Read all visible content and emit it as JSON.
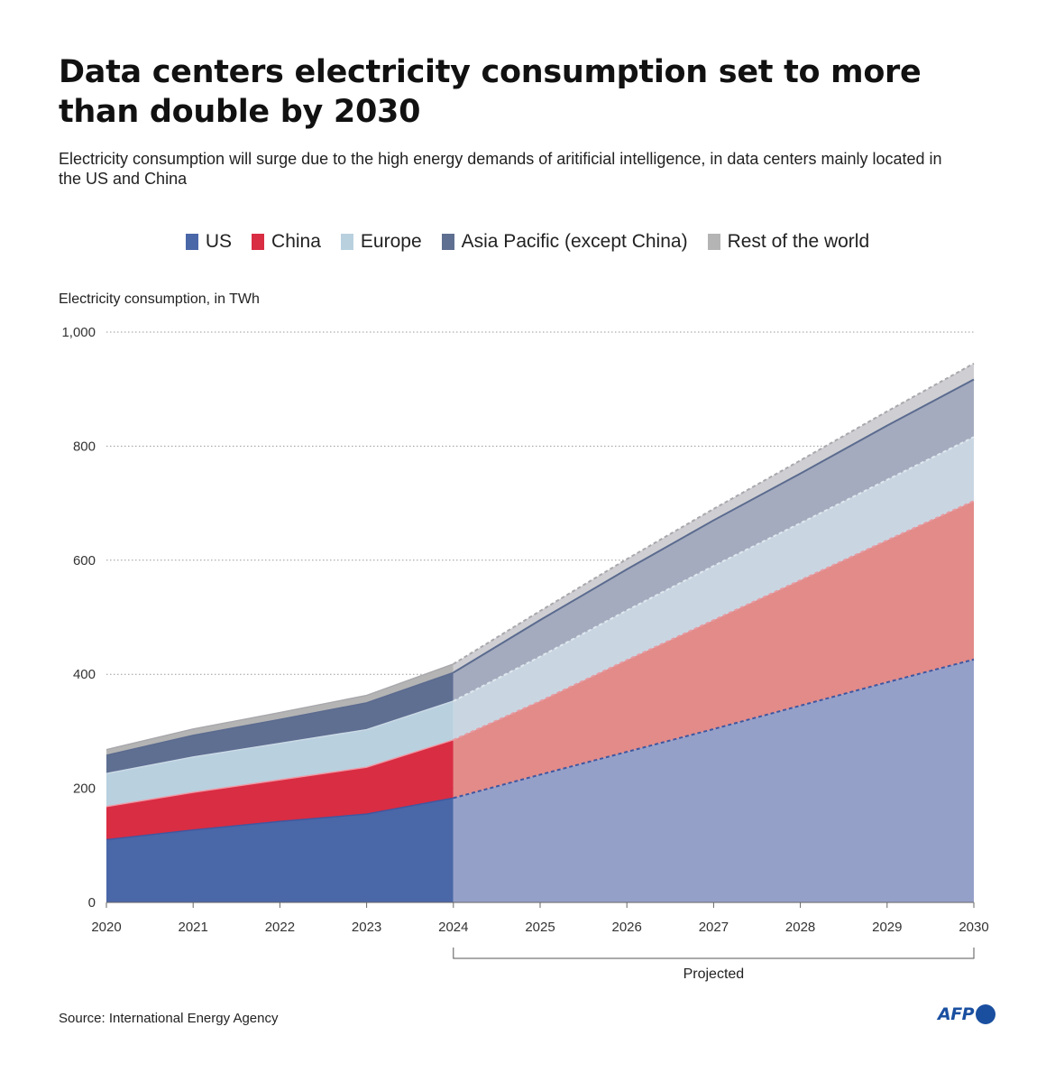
{
  "title": "Data centers electricity consumption set to more than double by 2030",
  "subtitle": "Electricity consumption will surge due to the high energy demands of aritificial intelligence, in data centers mainly located in the US and China",
  "unit_label": "Electricity consumption, in TWh",
  "source": "Source: International Energy Agency",
  "logo": "AFP",
  "colors": {
    "us": "#4a67a8",
    "china": "#d92d43",
    "europe": "#b9d0df",
    "asia": "#5f6f92",
    "rest": "#b4b4b4",
    "us_proj": "#95a0c9",
    "china_proj": "#e28b89",
    "europe_proj": "#c9d6e2",
    "asia_proj": "#a4abbe",
    "rest_proj": "#cfcfd3"
  },
  "chart_data": {
    "type": "area",
    "stacked": true,
    "x": [
      2020,
      2021,
      2022,
      2023,
      2024,
      2025,
      2026,
      2027,
      2028,
      2029,
      2030
    ],
    "ylim": [
      0,
      1000
    ],
    "yticks": [
      0,
      200,
      400,
      600,
      800,
      1000
    ],
    "ytick_labels": [
      "0",
      "200",
      "400",
      "600",
      "800",
      "1,000"
    ],
    "projected_from": 2024,
    "projected_label": "Projected",
    "ylabel": "Electricity consumption, in TWh",
    "series": [
      {
        "key": "us",
        "name": "US",
        "values": [
          110,
          127,
          142,
          155,
          183,
          224,
          264,
          304,
          345,
          386,
          426
        ]
      },
      {
        "key": "china",
        "name": "China",
        "values": [
          58,
          66,
          73,
          82,
          102,
          129,
          161,
          191,
          220,
          249,
          278
        ]
      },
      {
        "key": "europe",
        "name": "Europe",
        "values": [
          58,
          62,
          64,
          66,
          68,
          78,
          87,
          95,
          100,
          106,
          112
        ]
      },
      {
        "key": "asia",
        "name": "Asia Pacific (except China)",
        "values": [
          32,
          38,
          42,
          47,
          50,
          64,
          72,
          80,
          87,
          95,
          101
        ]
      },
      {
        "key": "rest",
        "name": "Rest of the world",
        "values": [
          10,
          11,
          12,
          13,
          15,
          16,
          18,
          20,
          23,
          25,
          28
        ]
      }
    ]
  }
}
